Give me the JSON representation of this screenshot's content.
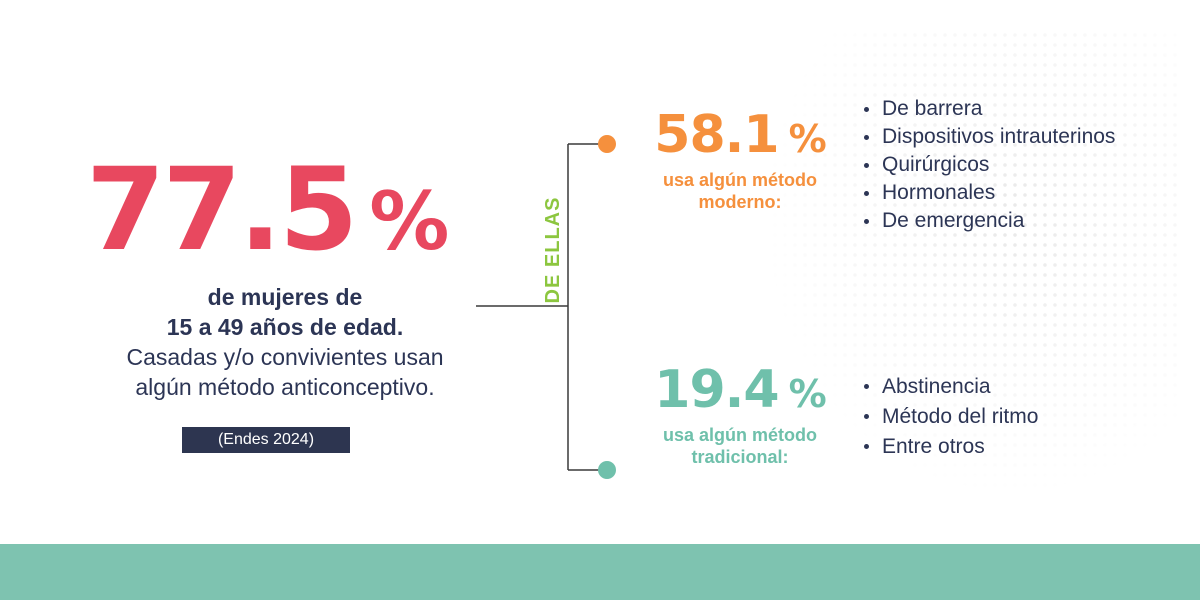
{
  "colors": {
    "headline_red": "#e8485f",
    "modern_orange": "#f5903d",
    "traditional_teal": "#6fc0ab",
    "de_ellas_green": "#8cc63f",
    "navy_text": "#2c3555",
    "badge_bg": "#2d3550",
    "footer_band": "#7ec3b0",
    "connector_line": "#3a3a3a"
  },
  "headline": {
    "value": "77.5",
    "unit": "%"
  },
  "description": {
    "line1": "de mujeres de",
    "line2": "15 a 49 años de edad.",
    "line3": "Casadas y/o convivientes usan",
    "line4": "algún método anticonceptivo."
  },
  "source": "(Endes 2024)",
  "connector_label": "DE ELLAS",
  "modern": {
    "value": "58.1",
    "unit": "%",
    "label_line1": "usa algún método",
    "label_line2": "moderno:",
    "items": [
      "De barrera",
      "Dispositivos intrauterinos",
      "Quirúrgicos",
      "Hormonales",
      "De emergencia"
    ]
  },
  "traditional": {
    "value": "19.4",
    "unit": "%",
    "label_line1": "usa algún método",
    "label_line2": "tradicional:",
    "items": [
      "Abstinencia",
      "Método del ritmo",
      "Entre otros"
    ]
  }
}
